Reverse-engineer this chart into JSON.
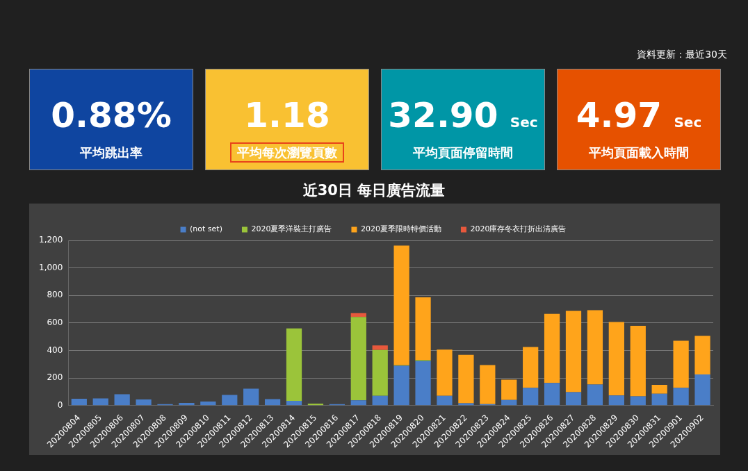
{
  "chart_data": [
    {
      "type": "other",
      "categories": [
        "平均跳出率",
        "平均每次瀏覽頁數",
        "平均頁面停留時間",
        "平均頁面載入時間"
      ],
      "value_labels": [
        "0.88%",
        "1.18",
        "32.90 Sec",
        "4.97 Sec"
      ],
      "colors": [
        "#0f45a0",
        "#f9c132",
        "#0096a6",
        "#e65100"
      ],
      "annotations": [
        "資料更新：最近30天"
      ]
    },
    {
      "type": "bar",
      "title": "近30日 每日廣告流量",
      "stacked": true,
      "legend": "top",
      "grid": "y",
      "categories": [
        "20200804",
        "20200805",
        "20200806",
        "20200807",
        "20200808",
        "20200809",
        "20200810",
        "20200811",
        "20200812",
        "20200813",
        "20200814",
        "20200815",
        "20200816",
        "20200817",
        "20200818",
        "20200819",
        "20200820",
        "20200821",
        "20200822",
        "20200823",
        "20200824",
        "20200825",
        "20200826",
        "20200827",
        "20200828",
        "20200829",
        "20200830",
        "20200831",
        "20200901",
        "20200902"
      ],
      "ylim": [
        0,
        1200
      ],
      "yticks": [
        0,
        200,
        400,
        600,
        800,
        {
          "value": 1000,
          "label": "1,000"
        },
        {
          "value": 1200,
          "label": "1,200"
        }
      ],
      "series": [
        {
          "name": "(not set)",
          "color": "#4a7ec8",
          "values": [
            48,
            51,
            82,
            43,
            9,
            18,
            28,
            77,
            122,
            46,
            34,
            null,
            9,
            37,
            70,
            288,
            322,
            70,
            16,
            9,
            40,
            128,
            164,
            96,
            152,
            73,
            66,
            85,
            128,
            226
          ]
        },
        {
          "name": "2020夏季洋裝主打廣告",
          "color": "#9bc43a",
          "values": [
            null,
            null,
            null,
            null,
            null,
            null,
            null,
            null,
            null,
            null,
            526,
            13,
            null,
            606,
            333,
            4,
            8,
            null,
            null,
            null,
            null,
            null,
            null,
            null,
            null,
            null,
            null,
            null,
            null,
            null
          ]
        },
        {
          "name": "2020夏季限時特價活動",
          "color": "#ffa41b",
          "values": [
            null,
            null,
            null,
            null,
            null,
            null,
            null,
            null,
            null,
            null,
            null,
            null,
            null,
            null,
            null,
            870,
            456,
            336,
            352,
            285,
            147,
            297,
            502,
            592,
            540,
            534,
            513,
            65,
            342,
            280
          ]
        },
        {
          "name": "2020庫存冬衣打折出清廣告",
          "color": "#e8583c",
          "values": [
            null,
            null,
            null,
            null,
            null,
            null,
            null,
            null,
            null,
            null,
            null,
            null,
            null,
            28,
            33,
            null,
            null,
            null,
            null,
            null,
            null,
            null,
            null,
            null,
            null,
            null,
            null,
            null,
            null,
            null
          ]
        }
      ]
    }
  ]
}
